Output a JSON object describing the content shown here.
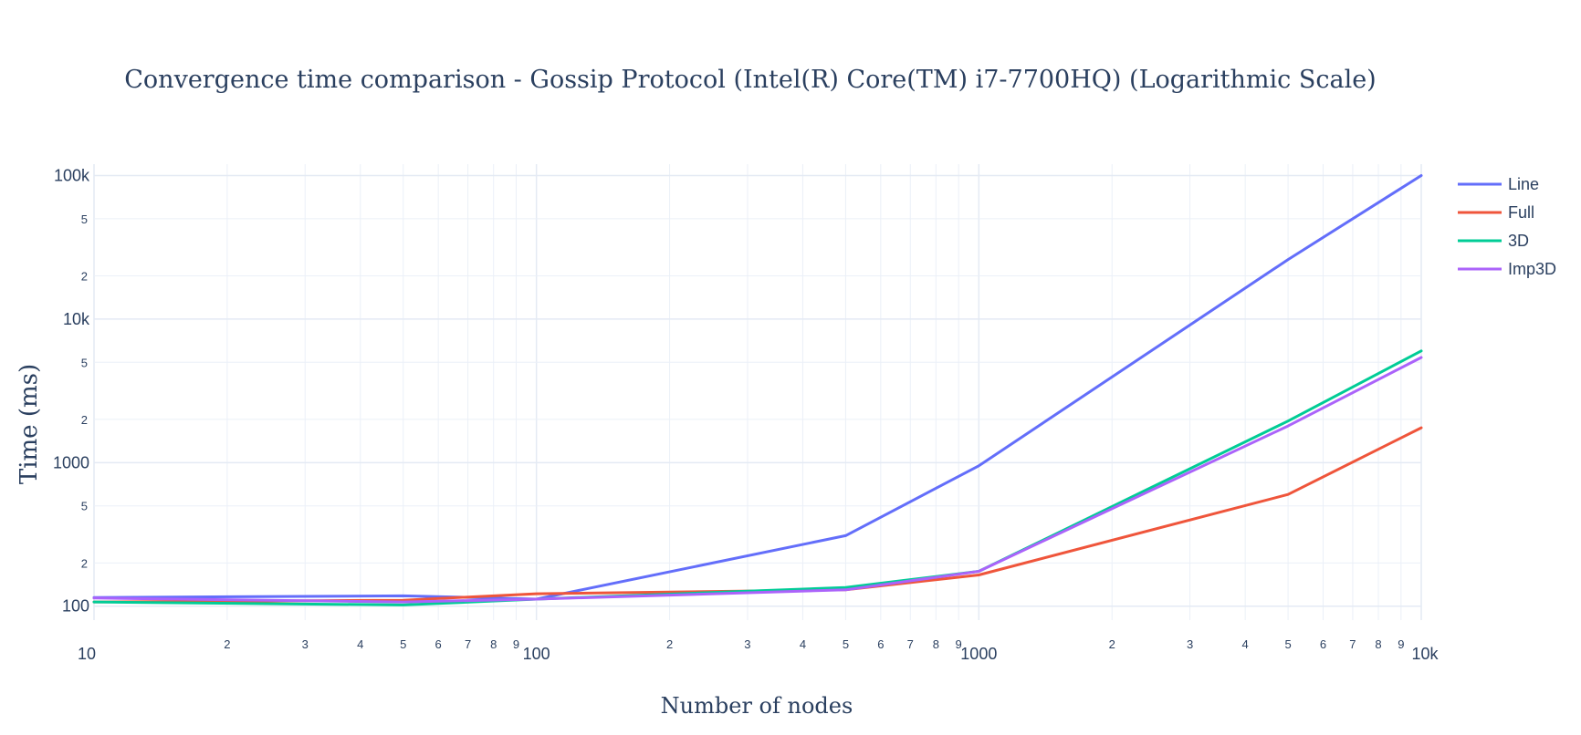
{
  "chart_data": {
    "type": "line",
    "title": "Convergence time comparison - Gossip Protocol (Intel(R) Core(TM) i7-7700HQ) (Logarithmic Scale)",
    "xlabel": "Number of nodes",
    "ylabel": "Time (ms)",
    "x_scale": "log",
    "y_scale": "log",
    "xlim": [
      10,
      10000
    ],
    "ylim": [
      80,
      120000
    ],
    "grid": true,
    "legend_position": "top-right",
    "x_major_ticks": [
      {
        "value": 10,
        "label": "10"
      },
      {
        "value": 100,
        "label": "100"
      },
      {
        "value": 1000,
        "label": "1000"
      },
      {
        "value": 10000,
        "label": "10k"
      }
    ],
    "x_minor_ticks": [
      {
        "value": 20,
        "label": "2"
      },
      {
        "value": 30,
        "label": "3"
      },
      {
        "value": 40,
        "label": "4"
      },
      {
        "value": 50,
        "label": "5"
      },
      {
        "value": 60,
        "label": "6"
      },
      {
        "value": 70,
        "label": "7"
      },
      {
        "value": 80,
        "label": "8"
      },
      {
        "value": 90,
        "label": "9"
      },
      {
        "value": 200,
        "label": "2"
      },
      {
        "value": 300,
        "label": "3"
      },
      {
        "value": 400,
        "label": "4"
      },
      {
        "value": 500,
        "label": "5"
      },
      {
        "value": 600,
        "label": "6"
      },
      {
        "value": 700,
        "label": "7"
      },
      {
        "value": 800,
        "label": "8"
      },
      {
        "value": 900,
        "label": "9"
      },
      {
        "value": 2000,
        "label": "2"
      },
      {
        "value": 3000,
        "label": "3"
      },
      {
        "value": 4000,
        "label": "4"
      },
      {
        "value": 5000,
        "label": "5"
      },
      {
        "value": 6000,
        "label": "6"
      },
      {
        "value": 7000,
        "label": "7"
      },
      {
        "value": 8000,
        "label": "8"
      },
      {
        "value": 9000,
        "label": "9"
      }
    ],
    "y_major_ticks": [
      {
        "value": 100,
        "label": "100"
      },
      {
        "value": 1000,
        "label": "1000"
      },
      {
        "value": 10000,
        "label": "10k"
      },
      {
        "value": 100000,
        "label": "100k"
      }
    ],
    "y_minor_ticks": [
      {
        "value": 200,
        "label": "2"
      },
      {
        "value": 500,
        "label": "5"
      },
      {
        "value": 2000,
        "label": "2"
      },
      {
        "value": 5000,
        "label": "5"
      },
      {
        "value": 20000,
        "label": "2"
      },
      {
        "value": 50000,
        "label": "5"
      }
    ],
    "series": [
      {
        "name": "Line",
        "color": "#636efa",
        "x": [
          10,
          50,
          100,
          500,
          1000,
          5000,
          10000
        ],
        "y": [
          115,
          118,
          112,
          310,
          950,
          26000,
          100000
        ]
      },
      {
        "name": "Full",
        "color": "#ef553b",
        "x": [
          10,
          50,
          100,
          500,
          1000,
          5000,
          10000
        ],
        "y": [
          107,
          110,
          122,
          130,
          165,
          600,
          1750
        ]
      },
      {
        "name": "3D",
        "color": "#00cc96",
        "x": [
          10,
          50,
          100,
          500,
          1000,
          5000,
          10000
        ],
        "y": [
          107,
          102,
          112,
          135,
          175,
          1950,
          6000
        ]
      },
      {
        "name": "Imp3D",
        "color": "#ab63fa",
        "x": [
          10,
          50,
          100,
          500,
          1000,
          5000,
          10000
        ],
        "y": [
          114,
          107,
          112,
          130,
          175,
          1800,
          5400
        ]
      }
    ]
  }
}
